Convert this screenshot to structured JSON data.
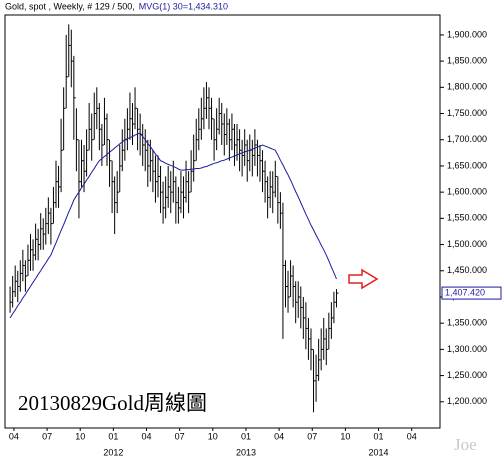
{
  "chart_data": {
    "type": "ohlc",
    "title": "Gold, spot , Weekly, # 129 / 500,",
    "ma_label": "MVG(1) 30=1,434.310",
    "ma_color": "#1c1ca0",
    "bar_color": "#000000",
    "annotation": "20130829Gold周線圖",
    "watermark": "Joe",
    "last_price_label": "1,407.420",
    "high": [
      1420,
      1440,
      1460,
      1450,
      1470,
      1490,
      1470,
      1500,
      1520,
      1510,
      1540,
      1530,
      1560,
      1550,
      1570,
      1590,
      1570,
      1610,
      1660,
      1650,
      1740,
      1800,
      1900,
      1920,
      1910,
      1860,
      1760,
      1700,
      1700,
      1690,
      1720,
      1770,
      1750,
      1790,
      1800,
      1770,
      1730,
      1780,
      1750,
      1700,
      1660,
      1630,
      1640,
      1690,
      1720,
      1740,
      1760,
      1790,
      1770,
      1800,
      1760,
      1750,
      1730,
      1720,
      1700,
      1700,
      1680,
      1670,
      1670,
      1650,
      1620,
      1630,
      1650,
      1640,
      1660,
      1630,
      1610,
      1640,
      1630,
      1660,
      1640,
      1680,
      1710,
      1740,
      1760,
      1780,
      1800,
      1810,
      1800,
      1780,
      1740,
      1760,
      1780,
      1770,
      1750,
      1760,
      1740,
      1750,
      1730,
      1730,
      1720,
      1700,
      1720,
      1700,
      1710,
      1700,
      1720,
      1700,
      1690,
      1680,
      1660,
      1630,
      1640,
      1640,
      1660,
      1630,
      1600,
      1580,
      1470,
      1450,
      1470,
      1460,
      1430,
      1430,
      1420,
      1400,
      1390,
      1360,
      1340,
      1300,
      1290,
      1320,
      1340,
      1360,
      1340,
      1370,
      1390,
      1410,
      1415
    ],
    "low": [
      1370,
      1380,
      1400,
      1390,
      1410,
      1430,
      1410,
      1440,
      1450,
      1450,
      1470,
      1470,
      1490,
      1490,
      1500,
      1520,
      1500,
      1540,
      1570,
      1570,
      1600,
      1680,
      1760,
      1820,
      1800,
      1700,
      1640,
      1550,
      1610,
      1600,
      1630,
      1680,
      1660,
      1700,
      1720,
      1680,
      1650,
      1690,
      1650,
      1610,
      1560,
      1520,
      1560,
      1600,
      1640,
      1660,
      1680,
      1700,
      1690,
      1720,
      1680,
      1670,
      1650,
      1640,
      1610,
      1620,
      1600,
      1580,
      1590,
      1560,
      1540,
      1550,
      1570,
      1560,
      1580,
      1540,
      1540,
      1560,
      1550,
      1580,
      1560,
      1600,
      1620,
      1660,
      1680,
      1700,
      1720,
      1740,
      1720,
      1700,
      1660,
      1680,
      1710,
      1690,
      1670,
      1690,
      1660,
      1680,
      1650,
      1660,
      1640,
      1630,
      1650,
      1620,
      1640,
      1630,
      1650,
      1630,
      1620,
      1600,
      1580,
      1550,
      1570,
      1560,
      1590,
      1540,
      1530,
      1320,
      1380,
      1370,
      1400,
      1380,
      1350,
      1360,
      1340,
      1320,
      1300,
      1280,
      1260,
      1180,
      1200,
      1240,
      1260,
      1280,
      1270,
      1300,
      1320,
      1350,
      1380
    ],
    "close": [
      1390,
      1410,
      1430,
      1420,
      1445,
      1460,
      1440,
      1470,
      1490,
      1480,
      1510,
      1500,
      1530,
      1520,
      1540,
      1560,
      1540,
      1580,
      1620,
      1610,
      1680,
      1760,
      1820,
      1880,
      1850,
      1780,
      1700,
      1620,
      1660,
      1640,
      1680,
      1720,
      1700,
      1750,
      1760,
      1720,
      1690,
      1740,
      1700,
      1660,
      1620,
      1580,
      1600,
      1650,
      1680,
      1700,
      1720,
      1740,
      1730,
      1760,
      1720,
      1710,
      1690,
      1680,
      1650,
      1660,
      1640,
      1620,
      1630,
      1600,
      1570,
      1590,
      1610,
      1600,
      1620,
      1580,
      1570,
      1600,
      1590,
      1620,
      1600,
      1640,
      1660,
      1700,
      1720,
      1740,
      1760,
      1780,
      1760,
      1740,
      1700,
      1720,
      1750,
      1730,
      1710,
      1730,
      1700,
      1720,
      1690,
      1700,
      1680,
      1670,
      1690,
      1660,
      1680,
      1670,
      1690,
      1670,
      1660,
      1640,
      1620,
      1590,
      1610,
      1600,
      1630,
      1580,
      1560,
      1460,
      1420,
      1400,
      1440,
      1420,
      1390,
      1400,
      1380,
      1360,
      1340,
      1320,
      1300,
      1240,
      1250,
      1280,
      1300,
      1320,
      1300,
      1340,
      1360,
      1390,
      1407.42
    ],
    "ma_values": [
      1360,
      1368,
      1375,
      1383,
      1390,
      1398,
      1405,
      1413,
      1420,
      1428,
      1435,
      1443,
      1450,
      1458,
      1465,
      1473,
      1480,
      1492,
      1503,
      1515,
      1527,
      1538,
      1550,
      1562,
      1573,
      1585,
      1593,
      1600,
      1608,
      1615,
      1623,
      1630,
      1638,
      1645,
      1653,
      1660,
      1664,
      1668,
      1672,
      1676,
      1680,
      1684,
      1688,
      1692,
      1696,
      1700,
      1702,
      1704,
      1706,
      1709,
      1711,
      1713,
      1706,
      1700,
      1693,
      1687,
      1680,
      1673,
      1667,
      1660,
      1658,
      1655,
      1653,
      1651,
      1649,
      1647,
      1644,
      1642,
      1642,
      1643,
      1643,
      1644,
      1644,
      1645,
      1645,
      1646,
      1648,
      1649,
      1651,
      1653,
      1655,
      1656,
      1658,
      1660,
      1661,
      1663,
      1665,
      1667,
      1669,
      1671,
      1673,
      1675,
      1677,
      1678,
      1680,
      1682,
      1684,
      1686,
      1688,
      1690,
      1688,
      1686,
      1684,
      1682,
      1680,
      1671,
      1661,
      1652,
      1642,
      1633,
      1623,
      1612,
      1601,
      1591,
      1580,
      1569,
      1558,
      1548,
      1537,
      1528,
      1518,
      1509,
      1499,
      1490,
      1480,
      1469,
      1457,
      1446,
      1434.31
    ],
    "xlim": [
      -2,
      168.6
    ],
    "ylim": [
      1150,
      1938
    ],
    "xticks": [
      {
        "value": 1.5,
        "label": "04"
      },
      {
        "value": 14.5,
        "label": "07"
      },
      {
        "value": 27.5,
        "label": "10"
      },
      {
        "value": 40.5,
        "label": "01"
      },
      {
        "value": 53.5,
        "label": "04"
      },
      {
        "value": 66.5,
        "label": "07"
      },
      {
        "value": 79.5,
        "label": "10"
      },
      {
        "value": 92.5,
        "label": "01"
      },
      {
        "value": 105.5,
        "label": "04"
      },
      {
        "value": 118.5,
        "label": "07"
      },
      {
        "value": 131.5,
        "label": "10"
      },
      {
        "value": 144.5,
        "label": "01"
      },
      {
        "value": 157.5,
        "label": "04"
      }
    ],
    "year_labels": [
      {
        "value": 40.5,
        "label": "2012"
      },
      {
        "value": 92.5,
        "label": "2013"
      },
      {
        "value": 144.5,
        "label": "2014"
      }
    ],
    "yticks": [
      {
        "value": 1200,
        "label": "1,200.000"
      },
      {
        "value": 1250,
        "label": "1,250.000"
      },
      {
        "value": 1300,
        "label": "1,300.000"
      },
      {
        "value": 1350,
        "label": "1,350.000"
      },
      {
        "value": 1400,
        "label": "1,400.000"
      },
      {
        "value": 1450,
        "label": "1,450.000"
      },
      {
        "value": 1500,
        "label": "1,500.000"
      },
      {
        "value": 1550,
        "label": "1,550.000"
      },
      {
        "value": 1600,
        "label": "1,600.000"
      },
      {
        "value": 1650,
        "label": "1,650.000"
      },
      {
        "value": 1700,
        "label": "1,700.000"
      },
      {
        "value": 1750,
        "label": "1,750.000"
      },
      {
        "value": 1800,
        "label": "1,800.000"
      },
      {
        "value": 1850,
        "label": "1,850.000"
      },
      {
        "value": 1900,
        "label": "1,900.000"
      }
    ]
  }
}
